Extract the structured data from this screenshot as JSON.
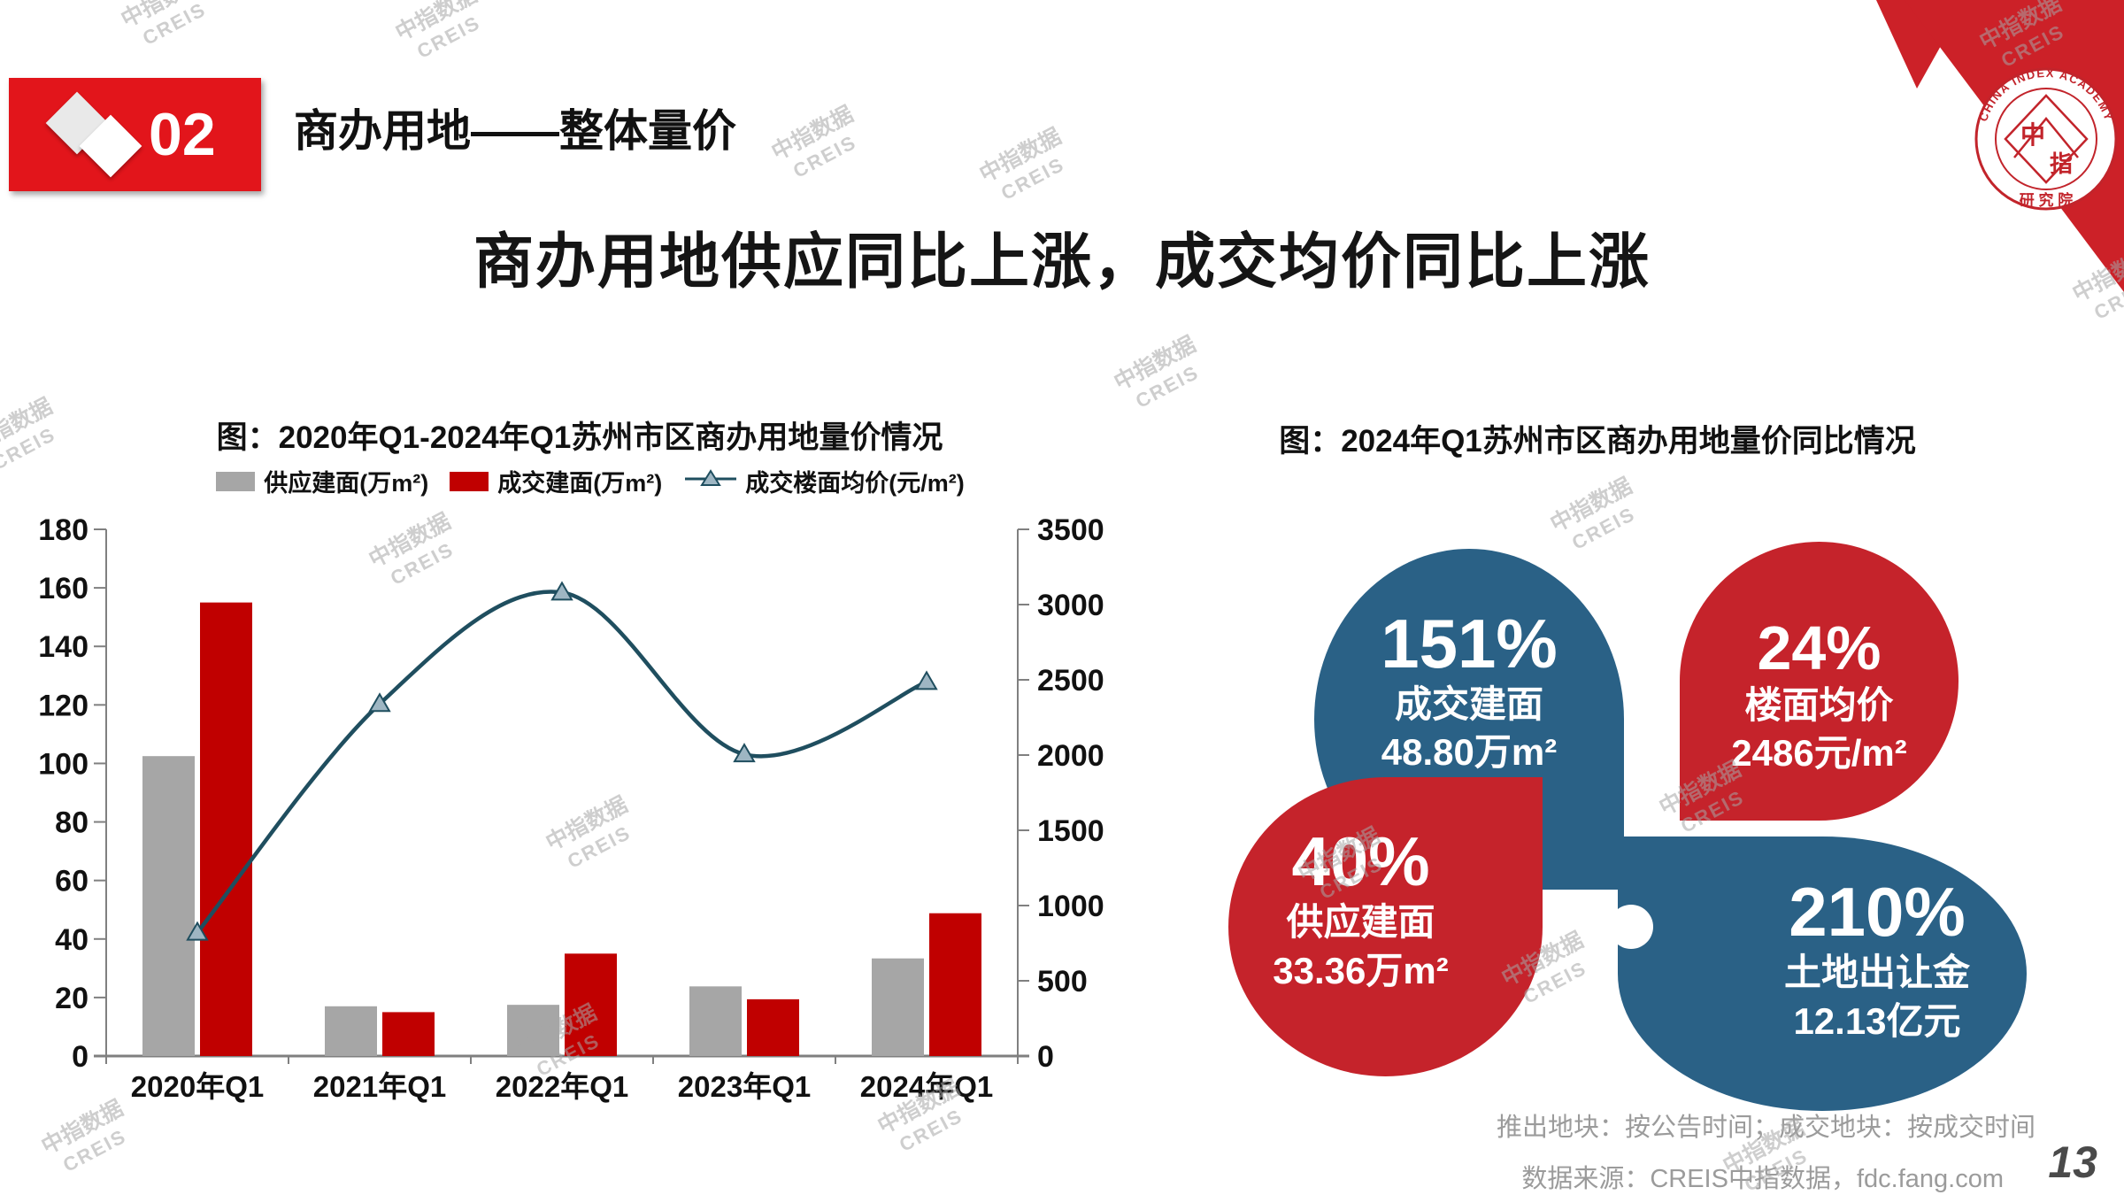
{
  "header": {
    "badge_number": "02",
    "section_title": "商办用地——整体量价",
    "main_title": "商办用地供应同比上涨，成交均价同比上涨"
  },
  "logo": {
    "arc_text": "CHINA INDEX ACADEMY",
    "center_top": "中",
    "center_bottom": "指",
    "bottom_text": "研 究 院"
  },
  "watermark": {
    "line1": "中指数据",
    "line2": "CREIS"
  },
  "chart_data": [
    {
      "type": "combo",
      "title": "图：2020年Q1-2024年Q1苏州市区商办用地量价情况",
      "categories": [
        "2020年Q1",
        "2021年Q1",
        "2022年Q1",
        "2023年Q1",
        "2024年Q1"
      ],
      "series": [
        {
          "name": "供应建面(万m²)",
          "type": "bar",
          "axis": "left",
          "color": "#A6A6A6",
          "values": [
            102.5,
            17,
            17.5,
            23.8,
            33.36
          ]
        },
        {
          "name": "成交建面(万m²)",
          "type": "bar",
          "axis": "left",
          "color": "#C00000",
          "values": [
            155,
            15,
            35,
            19.4,
            48.8
          ]
        },
        {
          "name": "成交楼面均价(元/m²)",
          "type": "line",
          "axis": "right",
          "color": "#1F4E5F",
          "marker_fill": "#9EB6C3",
          "values": [
            820,
            2340,
            3080,
            2005,
            2486
          ]
        }
      ],
      "left_axis": {
        "min": 0,
        "max": 180,
        "step": 20
      },
      "right_axis": {
        "min": 0,
        "max": 3500,
        "step": 500
      },
      "grid": false,
      "legend_position": "top"
    },
    {
      "type": "infographic",
      "title": "图：2024年Q1苏州市区商办用地量价同比情况",
      "items": [
        {
          "yoy": "151%",
          "label": "成交建面",
          "value": "48.80万m²",
          "color": "#2A6186",
          "position": "top-left"
        },
        {
          "yoy": "24%",
          "label": "楼面均价",
          "value": "2486元/m²",
          "color": "#C5232B",
          "position": "top-right"
        },
        {
          "yoy": "40%",
          "label": "供应建面",
          "value": "33.36万m²",
          "color": "#C5232B",
          "position": "bottom-left"
        },
        {
          "yoy": "210%",
          "label": "土地出让金",
          "value": "12.13亿元",
          "color": "#2A6186",
          "position": "bottom-right"
        }
      ]
    }
  ],
  "footnotes": {
    "note1": "推出地块：按公告时间；成交地块：按成交时间",
    "note2": "数据来源：CREIS中指数据，fdc.fang.com"
  },
  "page_number": "13",
  "colors": {
    "accent_red": "#E2151B",
    "bar_gray": "#A6A6A6",
    "bar_red": "#C00000",
    "line_teal": "#1F4E5F",
    "petal_blue": "#2A6186",
    "petal_red": "#C5232B",
    "corner_red": "#CC2128"
  }
}
